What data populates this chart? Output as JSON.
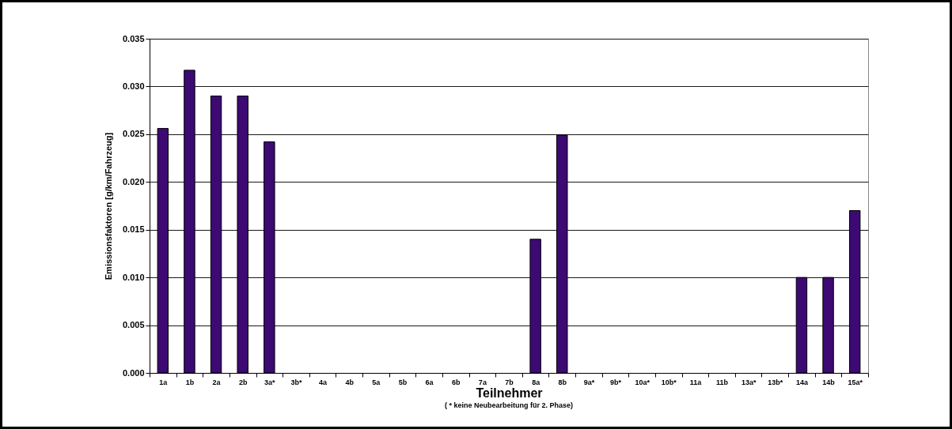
{
  "chart_data": {
    "type": "bar",
    "xlabel": "Teilnehmer",
    "ylabel": "Emissionsfaktoren [g/km/Fahrzeug]",
    "annotations": [
      "( * keine Neubearbeitung für 2. Phase)"
    ],
    "categories": [
      "1a",
      "1b",
      "2a",
      "2b",
      "3a*",
      "3b*",
      "4a",
      "4b",
      "5a",
      "5b",
      "6a",
      "6b",
      "7a",
      "7b",
      "8a",
      "8b",
      "9a*",
      "9b*",
      "10a*",
      "10b*",
      "11a",
      "11b",
      "13a*",
      "13b*",
      "14a",
      "14b",
      "15a*"
    ],
    "values": [
      0.0256,
      0.0317,
      0.029,
      0.029,
      0.0242,
      null,
      null,
      null,
      null,
      null,
      null,
      null,
      null,
      null,
      0.014,
      0.0249,
      null,
      null,
      null,
      null,
      null,
      null,
      null,
      null,
      0.01,
      0.01,
      0.017
    ],
    "color": "#3c0a72",
    "ylim": [
      0,
      0.035
    ],
    "yticks": [
      {
        "value": 0,
        "label": "0.000"
      },
      {
        "value": 0.005,
        "label": "0.005"
      },
      {
        "value": 0.01,
        "label": "0.010"
      },
      {
        "value": 0.015,
        "label": "0.015"
      },
      {
        "value": 0.02,
        "label": "0.020"
      },
      {
        "value": 0.025,
        "label": "0.025"
      },
      {
        "value": 0.03,
        "label": "0.030"
      },
      {
        "value": 0.035,
        "label": "0.035"
      }
    ],
    "grid": "y"
  }
}
